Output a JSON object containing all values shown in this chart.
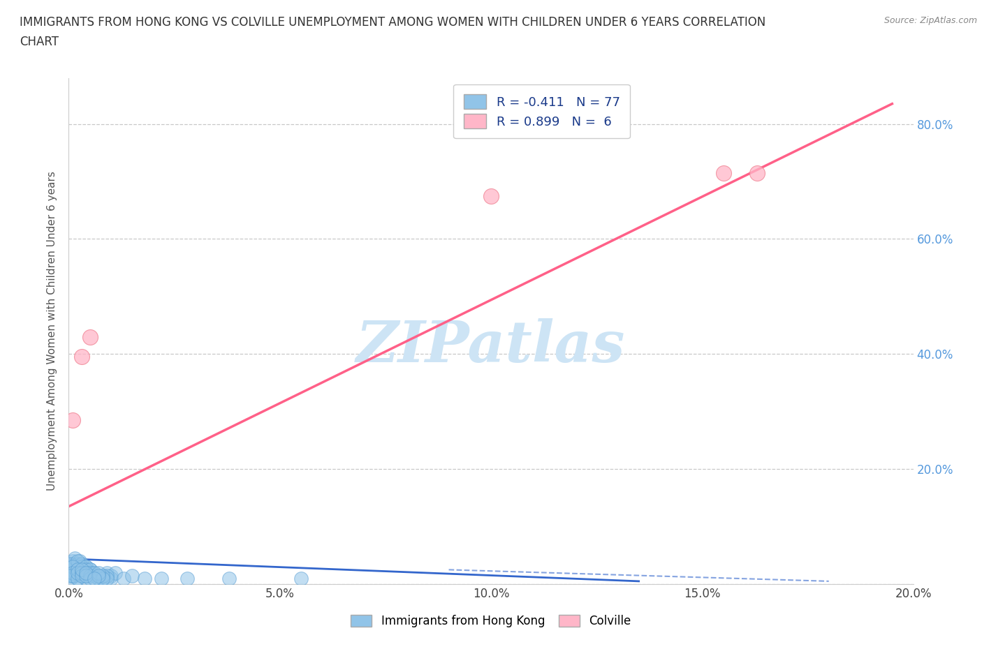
{
  "title_line1": "IMMIGRANTS FROM HONG KONG VS COLVILLE UNEMPLOYMENT AMONG WOMEN WITH CHILDREN UNDER 6 YEARS CORRELATION",
  "title_line2": "CHART",
  "source": "Source: ZipAtlas.com",
  "ylabel": "Unemployment Among Women with Children Under 6 years",
  "xlim": [
    0,
    0.2
  ],
  "ylim": [
    0,
    0.88
  ],
  "xticks": [
    0.0,
    0.05,
    0.1,
    0.15,
    0.2
  ],
  "xtick_labels": [
    "0.0%",
    "5.0%",
    "10.0%",
    "15.0%",
    "20.0%"
  ],
  "yticks": [
    0.0,
    0.2,
    0.4,
    0.6,
    0.8
  ],
  "right_ytick_labels": [
    "",
    "20.0%",
    "40.0%",
    "60.0%",
    "80.0%"
  ],
  "background_color": "#ffffff",
  "watermark_text": "ZIPatlas",
  "watermark_color": "#cde4f5",
  "blue_color": "#91c4e8",
  "blue_edge_color": "#5a9fd4",
  "pink_color": "#ffb6c8",
  "pink_edge_color": "#f08090",
  "blue_line_color": "#3366cc",
  "pink_line_color": "#ff6088",
  "right_axis_color": "#5599dd",
  "blue_R": -0.411,
  "blue_N": 77,
  "pink_R": 0.899,
  "pink_N": 6,
  "legend_label_blue": "Immigrants from Hong Kong",
  "legend_label_pink": "Colville",
  "blue_scatter_x": [
    0.0005,
    0.001,
    0.0008,
    0.0015,
    0.002,
    0.001,
    0.0012,
    0.002,
    0.003,
    0.002,
    0.001,
    0.0005,
    0.0015,
    0.002,
    0.003,
    0.0025,
    0.002,
    0.001,
    0.001,
    0.0005,
    0.004,
    0.0035,
    0.004,
    0.003,
    0.003,
    0.002,
    0.002,
    0.001,
    0.001,
    0.0005,
    0.005,
    0.005,
    0.006,
    0.004,
    0.004,
    0.003,
    0.003,
    0.002,
    0.002,
    0.002,
    0.006,
    0.006,
    0.007,
    0.005,
    0.005,
    0.004,
    0.004,
    0.003,
    0.003,
    0.003,
    0.008,
    0.008,
    0.009,
    0.007,
    0.007,
    0.006,
    0.005,
    0.005,
    0.004,
    0.004,
    0.01,
    0.01,
    0.011,
    0.009,
    0.009,
    0.008,
    0.008,
    0.007,
    0.007,
    0.006,
    0.013,
    0.015,
    0.018,
    0.022,
    0.028,
    0.038,
    0.055
  ],
  "blue_scatter_y": [
    0.01,
    0.015,
    0.025,
    0.02,
    0.01,
    0.03,
    0.015,
    0.025,
    0.02,
    0.035,
    0.04,
    0.03,
    0.045,
    0.035,
    0.025,
    0.04,
    0.03,
    0.02,
    0.015,
    0.035,
    0.03,
    0.025,
    0.02,
    0.035,
    0.03,
    0.025,
    0.04,
    0.03,
    0.02,
    0.015,
    0.025,
    0.02,
    0.015,
    0.03,
    0.025,
    0.02,
    0.015,
    0.01,
    0.025,
    0.02,
    0.02,
    0.015,
    0.01,
    0.025,
    0.02,
    0.015,
    0.01,
    0.02,
    0.015,
    0.025,
    0.015,
    0.01,
    0.02,
    0.015,
    0.01,
    0.02,
    0.015,
    0.01,
    0.015,
    0.02,
    0.015,
    0.01,
    0.02,
    0.015,
    0.01,
    0.015,
    0.01,
    0.02,
    0.015,
    0.01,
    0.01,
    0.015,
    0.01,
    0.01,
    0.01,
    0.01,
    0.01
  ],
  "pink_scatter_x": [
    0.001,
    0.003,
    0.005,
    0.1,
    0.155,
    0.163
  ],
  "pink_scatter_y": [
    0.285,
    0.395,
    0.43,
    0.675,
    0.715,
    0.715
  ],
  "pink_trend_x": [
    0.0,
    0.195
  ],
  "pink_trend_y": [
    0.135,
    0.835
  ],
  "blue_trend_x1": 0.0,
  "blue_trend_y1": 0.044,
  "blue_trend_x2": 0.135,
  "blue_trend_y2": 0.005,
  "blue_trend_dash_x1": 0.09,
  "blue_trend_dash_y1": 0.025,
  "blue_trend_dash_x2": 0.18,
  "blue_trend_dash_y2": 0.005
}
